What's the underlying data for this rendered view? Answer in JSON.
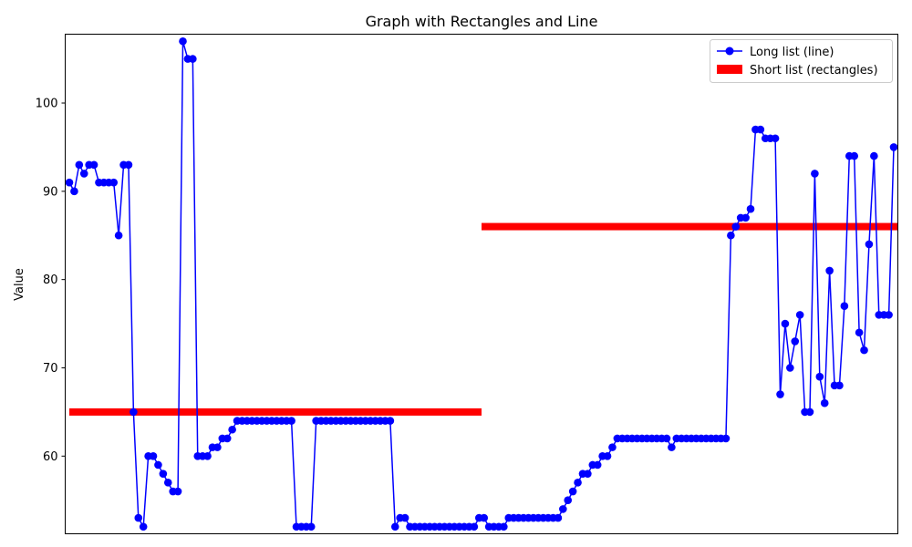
{
  "chart_data": {
    "type": "line",
    "title": "Graph with Rectangles and Line",
    "xlabel": "",
    "ylabel": "Value",
    "ylim": [
      51.2,
      107.8
    ],
    "yticks": [
      60,
      70,
      80,
      90,
      100
    ],
    "grid": false,
    "legend_position": "top-right",
    "series": [
      {
        "name": "Long list (line)",
        "kind": "line",
        "color": "#0000ff",
        "marker": "circle",
        "values": [
          91,
          90,
          93,
          92,
          93,
          93,
          91,
          91,
          91,
          91,
          85,
          93,
          93,
          65,
          53,
          52,
          60,
          60,
          59,
          58,
          57,
          56,
          56,
          107,
          105,
          105,
          60,
          60,
          60,
          61,
          61,
          62,
          62,
          63,
          64,
          64,
          64,
          64,
          64,
          64,
          64,
          64,
          64,
          64,
          64,
          64,
          52,
          52,
          52,
          52,
          64,
          64,
          64,
          64,
          64,
          64,
          64,
          64,
          64,
          64,
          64,
          64,
          64,
          64,
          64,
          64,
          52,
          53,
          53,
          52,
          52,
          52,
          52,
          52,
          52,
          52,
          52,
          52,
          52,
          52,
          52,
          52,
          52,
          53,
          53,
          52,
          52,
          52,
          52,
          53,
          53,
          53,
          53,
          53,
          53,
          53,
          53,
          53,
          53,
          53,
          54,
          55,
          56,
          57,
          58,
          58,
          59,
          59,
          60,
          60,
          61,
          62,
          62,
          62,
          62,
          62,
          62,
          62,
          62,
          62,
          62,
          62,
          61,
          62,
          62,
          62,
          62,
          62,
          62,
          62,
          62,
          62,
          62,
          62,
          85,
          86,
          87,
          87,
          88,
          97,
          97,
          96,
          96,
          96,
          67,
          75,
          70,
          73,
          76,
          65,
          65,
          92,
          69,
          66,
          81,
          68,
          68,
          77,
          94,
          94,
          74,
          72,
          84,
          94,
          76,
          76,
          76,
          95
        ]
      },
      {
        "name": "Short list (rectangles)",
        "kind": "rectangles",
        "color": "#ff0000",
        "values": [
          65,
          86
        ]
      }
    ]
  }
}
